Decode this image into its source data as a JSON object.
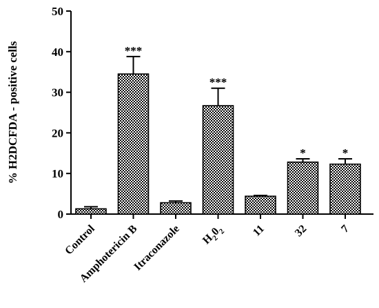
{
  "chart_data": {
    "type": "bar",
    "ylabel": "% H2DCFDA - positive cells",
    "ylim": [
      0,
      50
    ],
    "yticks": [
      "0",
      "10",
      "20",
      "30",
      "40",
      "50"
    ],
    "grid": false,
    "categories": [
      {
        "key": "control",
        "label": "Control",
        "sub": ""
      },
      {
        "key": "amphotericin-b",
        "label": "Amphotericin B",
        "sub": ""
      },
      {
        "key": "itraconazole",
        "label": "Itraconazole",
        "sub": ""
      },
      {
        "key": "h2o2",
        "label": "H",
        "sub": "2",
        "label2": "0",
        "sub2": "2"
      },
      {
        "key": "compound-11",
        "label": "11",
        "sub": ""
      },
      {
        "key": "compound-32",
        "label": "32",
        "sub": ""
      },
      {
        "key": "compound-7",
        "label": "7",
        "sub": ""
      }
    ],
    "values": [
      1.3,
      34.5,
      2.8,
      26.7,
      4.4,
      12.8,
      12.3
    ],
    "errors": [
      0.5,
      4.3,
      0.4,
      4.3,
      0.2,
      0.8,
      1.3
    ],
    "significance": [
      "",
      "***",
      "",
      "***",
      "",
      "*",
      "*"
    ]
  }
}
